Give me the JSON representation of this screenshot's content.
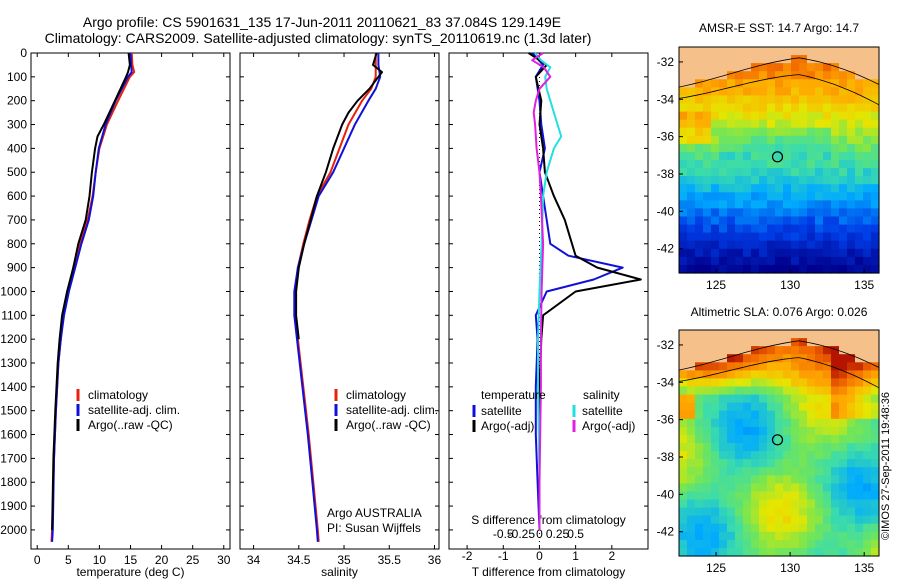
{
  "header": {
    "line1": "Argo profile: CS 5901631_135 17-Jun-2011 20110621_83 37.084S 129.149E",
    "line2": "Climatology: CARS2009. Satellite-adjusted climatology: synTS_20110619.nc (1.3d later)"
  },
  "colors": {
    "climatology": "#e8200c",
    "satellite": "#1010d8",
    "argo": "#000000",
    "sat_sal": "#20e0e0",
    "argo_sal": "#e020e0"
  },
  "chart_data": [
    {
      "type": "line",
      "id": "temperature",
      "xlabel": "temperature (deg C)",
      "ylim": [
        2080,
        0
      ],
      "xlim": [
        -1,
        31
      ],
      "yticks": [
        0,
        100,
        200,
        300,
        400,
        500,
        600,
        700,
        800,
        900,
        1000,
        1100,
        1200,
        1300,
        1400,
        1500,
        1600,
        1700,
        1800,
        1900,
        2000
      ],
      "xticks": [
        0,
        5,
        10,
        15,
        20,
        25,
        30
      ],
      "legend": [
        "climatology",
        "satellite-adj. clim.",
        "Argo(..raw -QC)"
      ],
      "series": [
        {
          "name": "climatology",
          "color": "climatology",
          "depth": [
            0,
            50,
            80,
            100,
            200,
            300,
            400,
            500,
            600,
            700,
            800,
            900,
            1000,
            1100,
            1200,
            1300,
            1500,
            1700,
            2000,
            2050
          ],
          "values": [
            15.2,
            15.3,
            15.6,
            14.9,
            13.0,
            11.2,
            10.0,
            9.4,
            8.9,
            8.1,
            6.8,
            5.8,
            4.9,
            4.2,
            3.8,
            3.4,
            3.0,
            2.7,
            2.4,
            2.3
          ]
        },
        {
          "name": "satellite-adj. clim.",
          "color": "satellite",
          "depth": [
            0,
            50,
            80,
            100,
            200,
            300,
            400,
            500,
            600,
            700,
            800,
            900,
            1000,
            1100,
            1200,
            1300,
            1500,
            1700,
            2000,
            2050
          ],
          "values": [
            15.0,
            15.1,
            15.2,
            14.6,
            12.6,
            11.0,
            9.9,
            9.4,
            9.0,
            8.3,
            7.1,
            6.1,
            5.1,
            4.3,
            3.8,
            3.4,
            3.0,
            2.7,
            2.5,
            2.4
          ]
        },
        {
          "name": "Argo(..raw -QC)",
          "color": "argo",
          "depth": [
            0,
            50,
            80,
            100,
            200,
            300,
            350,
            400,
            500,
            600,
            700,
            800,
            900,
            1000,
            1100,
            1200,
            1300,
            1500,
            1700,
            2000
          ],
          "values": [
            14.7,
            14.9,
            14.6,
            14.3,
            12.5,
            10.7,
            9.7,
            9.3,
            8.8,
            8.4,
            7.8,
            6.6,
            5.8,
            4.8,
            4.0,
            3.6,
            3.3,
            2.9,
            2.6,
            2.4
          ]
        }
      ]
    },
    {
      "type": "line",
      "id": "salinity",
      "xlabel": "salinity",
      "ylim": [
        2080,
        0
      ],
      "xlim": [
        33.85,
        36.05
      ],
      "xticks": [
        34,
        34.5,
        35,
        35.5,
        36
      ],
      "legend": [
        "climatology",
        "satellite-adj. clim.",
        "Argo(..raw -QC)"
      ],
      "annotation": [
        "Argo AUSTRALIA",
        "PI: Susan Wijffels"
      ],
      "series": [
        {
          "name": "climatology",
          "color": "climatology",
          "depth": [
            0,
            50,
            100,
            150,
            200,
            300,
            400,
            500,
            600,
            700,
            800,
            900,
            1000,
            1100,
            1200,
            1400,
            1600,
            1800,
            2000,
            2050
          ],
          "values": [
            35.35,
            35.35,
            35.35,
            35.3,
            35.2,
            35.05,
            34.95,
            34.85,
            34.7,
            34.62,
            34.55,
            34.49,
            34.46,
            34.46,
            34.49,
            34.55,
            34.61,
            34.66,
            34.71,
            34.72
          ]
        },
        {
          "name": "satellite-adj. clim.",
          "color": "satellite",
          "depth": [
            0,
            50,
            100,
            150,
            200,
            300,
            400,
            500,
            600,
            700,
            800,
            900,
            1000,
            1100,
            1200,
            1400,
            1600,
            1800,
            2000,
            2050
          ],
          "values": [
            35.38,
            35.38,
            35.4,
            35.35,
            35.27,
            35.12,
            35.0,
            34.88,
            34.72,
            34.64,
            34.56,
            34.49,
            34.45,
            34.45,
            34.48,
            34.54,
            34.6,
            34.65,
            34.7,
            34.71
          ]
        },
        {
          "name": "Argo(..raw -QC)",
          "color": "argo",
          "depth": [
            0,
            50,
            80,
            100,
            150,
            200,
            250,
            300,
            400,
            500,
            600,
            700,
            800,
            900,
            1000,
            1100,
            1200
          ],
          "values": [
            35.36,
            35.32,
            35.42,
            35.38,
            35.28,
            35.15,
            35.05,
            34.98,
            34.88,
            34.8,
            34.7,
            34.63,
            34.56,
            34.5,
            34.47,
            34.47,
            34.5
          ]
        }
      ]
    },
    {
      "type": "line",
      "id": "difference",
      "xlabel_bottom": "T difference from climatology",
      "xlabel_top": "S difference from climatology",
      "xlim": [
        -2.5,
        3.0
      ],
      "ylim": [
        2080,
        0
      ],
      "xticks_T": [
        "-2",
        "-1",
        "0",
        "1",
        "2"
      ],
      "xticks_S": [
        "-0.5",
        "-0.25",
        "0",
        "0.25",
        "0.5"
      ],
      "legend_left_title": "temperature",
      "legend_right_title": "salinity",
      "legend_left": [
        "satellite",
        "Argo(-adj)"
      ],
      "legend_right": [
        "satellite",
        "Argo(-adj)"
      ],
      "series": [
        {
          "name": "T satellite",
          "color": "satellite",
          "depth": [
            0,
            50,
            100,
            200,
            300,
            400,
            500,
            600,
            700,
            800,
            850,
            900,
            950,
            1000,
            1100,
            1200,
            1400,
            1600,
            1800,
            2000
          ],
          "values": [
            -0.2,
            0.1,
            -0.1,
            0.0,
            0.05,
            0.15,
            0.0,
            0.1,
            0.2,
            0.3,
            0.8,
            2.3,
            1.5,
            0.2,
            -0.1,
            -0.05,
            -0.1,
            -0.1,
            -0.05,
            0.0
          ]
        },
        {
          "name": "T Argo(-adj)",
          "color": "argo",
          "depth": [
            0,
            50,
            100,
            200,
            300,
            400,
            500,
            600,
            700,
            800,
            850,
            900,
            950,
            1000,
            1100,
            1200,
            1400,
            1600,
            1800,
            2000
          ],
          "values": [
            -0.3,
            0.2,
            -0.1,
            0.05,
            0.0,
            0.1,
            0.15,
            0.4,
            0.7,
            0.9,
            1.0,
            1.6,
            2.8,
            1.0,
            0.1,
            0.05,
            0.0,
            0.0,
            0.0,
            0.0
          ]
        },
        {
          "name": "S satellite",
          "color": "sat_sal",
          "depth": [
            0,
            30,
            60,
            100,
            150,
            200,
            300,
            350,
            400,
            500,
            600,
            800,
            1000,
            1200,
            1400,
            1600,
            1800,
            2000
          ],
          "values": [
            -0.06,
            0.02,
            0.15,
            0.08,
            0.1,
            0.15,
            0.25,
            0.3,
            0.2,
            0.1,
            0.05,
            0.03,
            0.0,
            -0.02,
            -0.02,
            -0.01,
            0.0,
            0.0
          ]
        },
        {
          "name": "S Argo(-adj)",
          "color": "argo_sal",
          "depth": [
            0,
            30,
            60,
            100,
            150,
            200,
            250,
            300,
            400,
            500,
            600,
            800,
            1000,
            1200,
            1400,
            1600,
            1800,
            2000
          ],
          "values": [
            0.05,
            -0.1,
            0.06,
            0.15,
            0.0,
            -0.05,
            -0.08,
            -0.06,
            -0.04,
            0.0,
            0.02,
            0.05,
            0.03,
            0.02,
            0.02,
            0.01,
            0.0,
            0.0
          ]
        }
      ]
    },
    {
      "type": "heatmap",
      "id": "sst-map",
      "title": "AMSR-E SST: 14.7 Argo: 14.7",
      "xticks": [
        "125",
        "130",
        "135"
      ],
      "yticks": [
        "-32",
        "-34",
        "-36",
        "-38",
        "-40",
        "-42"
      ],
      "xlim": [
        122.5,
        136
      ],
      "ylim": [
        -43.3,
        -31.2
      ],
      "argo_lon": 129.15,
      "argo_lat": -37.08
    },
    {
      "type": "heatmap",
      "id": "sla-map",
      "title": "Altimetric SLA: 0.076 Argo: 0.026",
      "xticks": [
        "125",
        "130",
        "135"
      ],
      "yticks": [
        "-32",
        "-34",
        "-36",
        "-38",
        "-40",
        "-42"
      ],
      "xlim": [
        122.5,
        136
      ],
      "ylim": [
        -43.3,
        -31.2
      ],
      "argo_lon": 129.15,
      "argo_lat": -37.08
    }
  ],
  "credit": "©IMOS 27-Sep-2011 19:48:36"
}
